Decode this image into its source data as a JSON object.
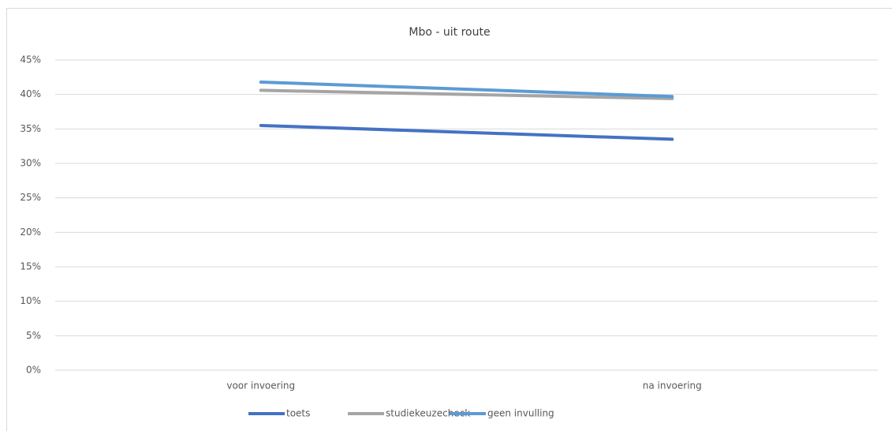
{
  "chart_data": {
    "type": "line",
    "title": "Mbo - uit route",
    "categories": [
      "voor invoering",
      "na invoering"
    ],
    "series": [
      {
        "name": "toets",
        "color": "#4472c4",
        "values": [
          35.5,
          33.5
        ]
      },
      {
        "name": "studiekeuzecheck",
        "color": "#a5a5a5",
        "values": [
          40.6,
          39.4
        ]
      },
      {
        "name": "geen invulling",
        "color": "#5b9bd5",
        "values": [
          41.8,
          39.7
        ]
      }
    ],
    "ylim": [
      0,
      45
    ],
    "yticks": [
      {
        "value": 0,
        "label": "0%"
      },
      {
        "value": 5,
        "label": "5%"
      },
      {
        "value": 10,
        "label": "10%"
      },
      {
        "value": 15,
        "label": "15%"
      },
      {
        "value": 20,
        "label": "20%"
      },
      {
        "value": 25,
        "label": "25%"
      },
      {
        "value": 30,
        "label": "30%"
      },
      {
        "value": 35,
        "label": "35%"
      },
      {
        "value": 40,
        "label": "40%"
      },
      {
        "value": 45,
        "label": "45%"
      }
    ],
    "grid": true,
    "legend": "bottom"
  }
}
